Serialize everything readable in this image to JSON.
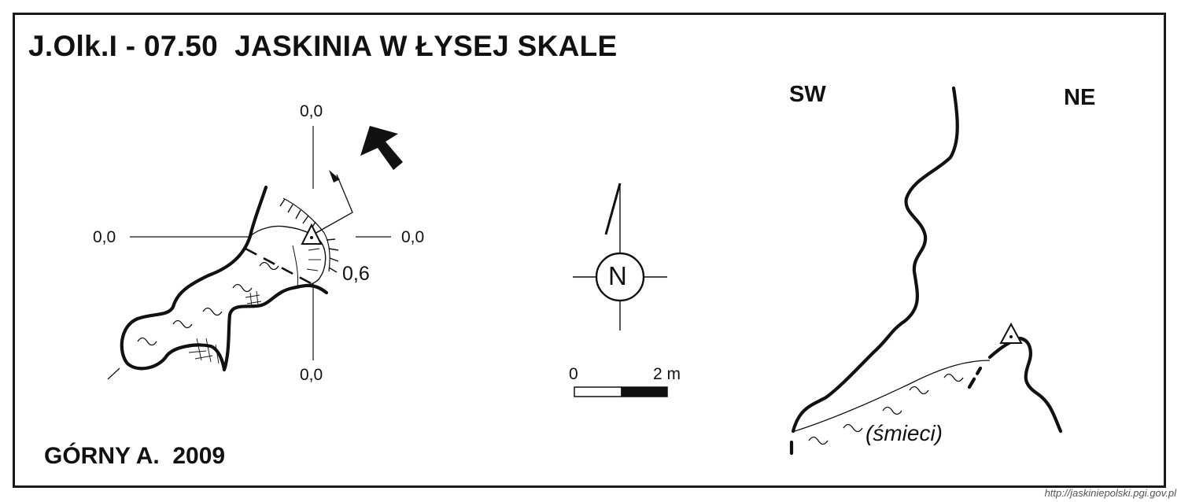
{
  "title": "J.Olk.I - 07.50  JASKINIA W ŁYSEJ SKALE",
  "author": "GÓRNY A.  2009",
  "plan": {
    "label_top": "0,0",
    "label_left": "0,0",
    "label_right": "0,0",
    "label_bottom": "0,0",
    "label_depth": "0,6"
  },
  "compass": {
    "north_label": "N"
  },
  "scale_bar": {
    "start": "0",
    "end": "2 m"
  },
  "section": {
    "label_sw": "SW",
    "label_ne": "NE",
    "annotation": "(śmieci)"
  },
  "source_url": "http://jaskiniepolski.pgi.gov.pl"
}
